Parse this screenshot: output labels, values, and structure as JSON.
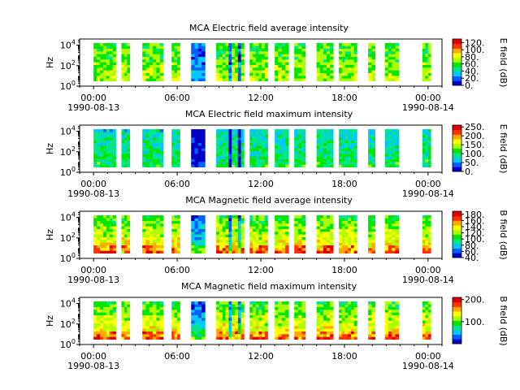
{
  "colorscale": [
    "#0000c8",
    "#0060ff",
    "#00c8ff",
    "#00e68c",
    "#00e600",
    "#aaff00",
    "#ffff00",
    "#ffaa00",
    "#ff3200",
    "#dc0000"
  ],
  "chart_data": [
    {
      "type": "heatmap",
      "title": "MCA  Electric field average intensity",
      "ylabel": "Hz",
      "colorbar_label": "E field (dB)",
      "colorbar_ticks": [
        "0.",
        "20.",
        "40.",
        "60.",
        "80.",
        "100.",
        "120."
      ],
      "colorbar_range": [
        0,
        130
      ],
      "x_ticks": [
        {
          "label": "00:00",
          "sublabel": "1990-08-13"
        },
        {
          "label": "06:00",
          "sublabel": ""
        },
        {
          "label": "12:00",
          "sublabel": ""
        },
        {
          "label": "18:00",
          "sublabel": ""
        },
        {
          "label": "00:00",
          "sublabel": "1990-08-14"
        }
      ],
      "y_ticks": [
        {
          "base": "10",
          "exp": "0"
        },
        {
          "base": "10",
          "exp": "2"
        },
        {
          "base": "10",
          "exp": "4"
        }
      ],
      "xlim_hours": [
        -1,
        25
      ],
      "ylim_log10": [
        0,
        4.6
      ],
      "data_segments": [
        [
          0,
          1.6
        ],
        [
          2,
          2.6
        ],
        [
          3.5,
          5
        ],
        [
          5.6,
          6.2
        ],
        [
          7,
          8
        ],
        [
          8.8,
          10.8
        ],
        [
          11.2,
          12.5
        ],
        [
          13,
          14
        ],
        [
          14.4,
          15.2
        ],
        [
          16,
          17.2
        ],
        [
          17.6,
          18.9
        ],
        [
          19.7,
          20.2
        ],
        [
          20.9,
          21.9
        ],
        [
          23.6,
          24.2
        ]
      ],
      "data_ylim_log10": [
        0.5,
        4.2
      ],
      "base_level": 0.45
    },
    {
      "type": "heatmap",
      "title": "MCA  Electric field maximum intensity",
      "ylabel": "Hz",
      "colorbar_label": "E field (dB)",
      "colorbar_ticks": [
        "0.",
        "50.",
        "100.",
        "150.",
        "200.",
        "250."
      ],
      "colorbar_range": [
        0,
        260
      ],
      "x_ticks": [
        {
          "label": "00:00",
          "sublabel": "1990-08-13"
        },
        {
          "label": "06:00",
          "sublabel": ""
        },
        {
          "label": "12:00",
          "sublabel": ""
        },
        {
          "label": "18:00",
          "sublabel": ""
        },
        {
          "label": "00:00",
          "sublabel": "1990-08-14"
        }
      ],
      "y_ticks": [
        {
          "base": "10",
          "exp": "0"
        },
        {
          "base": "10",
          "exp": "2"
        },
        {
          "base": "10",
          "exp": "4"
        }
      ],
      "xlim_hours": [
        -1,
        25
      ],
      "ylim_log10": [
        0,
        4.6
      ],
      "data_segments": [
        [
          0,
          1.6
        ],
        [
          2,
          2.6
        ],
        [
          3.5,
          5
        ],
        [
          5.6,
          6.2
        ],
        [
          7,
          8
        ],
        [
          8.8,
          10.8
        ],
        [
          11.2,
          12.5
        ],
        [
          13,
          14
        ],
        [
          14.4,
          15.2
        ],
        [
          16,
          17.2
        ],
        [
          17.6,
          18.9
        ],
        [
          19.7,
          20.2
        ],
        [
          20.9,
          21.9
        ],
        [
          23.6,
          24.2
        ]
      ],
      "data_ylim_log10": [
        0.5,
        4.2
      ],
      "base_level": 0.3
    },
    {
      "type": "heatmap",
      "title": "MCA  Magnetic field average intensity",
      "ylabel": "Hz",
      "colorbar_label": "B field (dB)",
      "colorbar_ticks": [
        "40.",
        "60.",
        "80.",
        "100.",
        "120.",
        "140.",
        "160.",
        "180."
      ],
      "colorbar_range": [
        40,
        190
      ],
      "x_ticks": [
        {
          "label": "00:00",
          "sublabel": "1990-08-13"
        },
        {
          "label": "06:00",
          "sublabel": ""
        },
        {
          "label": "12:00",
          "sublabel": ""
        },
        {
          "label": "18:00",
          "sublabel": ""
        },
        {
          "label": "00:00",
          "sublabel": "1990-08-14"
        }
      ],
      "y_ticks": [
        {
          "base": "10",
          "exp": "0"
        },
        {
          "base": "10",
          "exp": "2"
        },
        {
          "base": "10",
          "exp": "4"
        }
      ],
      "xlim_hours": [
        -1,
        25
      ],
      "ylim_log10": [
        0,
        4.6
      ],
      "data_segments": [
        [
          0,
          1.6
        ],
        [
          2,
          2.6
        ],
        [
          3.5,
          5
        ],
        [
          5.6,
          6.2
        ],
        [
          7,
          8
        ],
        [
          8.8,
          10.8
        ],
        [
          11.2,
          12.5
        ],
        [
          13,
          14
        ],
        [
          14.4,
          15.2
        ],
        [
          16,
          17.2
        ],
        [
          17.6,
          18.9
        ],
        [
          19.7,
          20.2
        ],
        [
          20.9,
          21.9
        ],
        [
          23.6,
          24.2
        ]
      ],
      "data_ylim_log10": [
        0.5,
        4.2
      ],
      "base_level": 0.45
    },
    {
      "type": "heatmap",
      "title": "MCA  Magnetic field maximum intensity",
      "ylabel": "Hz",
      "colorbar_label": "B field (dB)",
      "colorbar_ticks": [
        "100.",
        "200."
      ],
      "colorbar_range": [
        0,
        210
      ],
      "x_ticks": [
        {
          "label": "00:00",
          "sublabel": "1990-08-13"
        },
        {
          "label": "06:00",
          "sublabel": ""
        },
        {
          "label": "12:00",
          "sublabel": ""
        },
        {
          "label": "18:00",
          "sublabel": ""
        },
        {
          "label": "00:00",
          "sublabel": "1990-08-14"
        }
      ],
      "y_ticks": [
        {
          "base": "10",
          "exp": "0"
        },
        {
          "base": "10",
          "exp": "2"
        },
        {
          "base": "10",
          "exp": "4"
        }
      ],
      "xlim_hours": [
        -1,
        25
      ],
      "ylim_log10": [
        0,
        4.6
      ],
      "data_segments": [
        [
          0,
          1.6
        ],
        [
          2,
          2.6
        ],
        [
          3.5,
          5
        ],
        [
          5.6,
          6.2
        ],
        [
          7,
          8
        ],
        [
          8.8,
          10.8
        ],
        [
          11.2,
          12.5
        ],
        [
          13,
          14
        ],
        [
          14.4,
          15.2
        ],
        [
          16,
          17.2
        ],
        [
          17.6,
          18.9
        ],
        [
          19.7,
          20.2
        ],
        [
          20.9,
          21.9
        ],
        [
          23.6,
          24.2
        ]
      ],
      "data_ylim_log10": [
        0.5,
        4.2
      ],
      "base_level": 0.45
    }
  ]
}
